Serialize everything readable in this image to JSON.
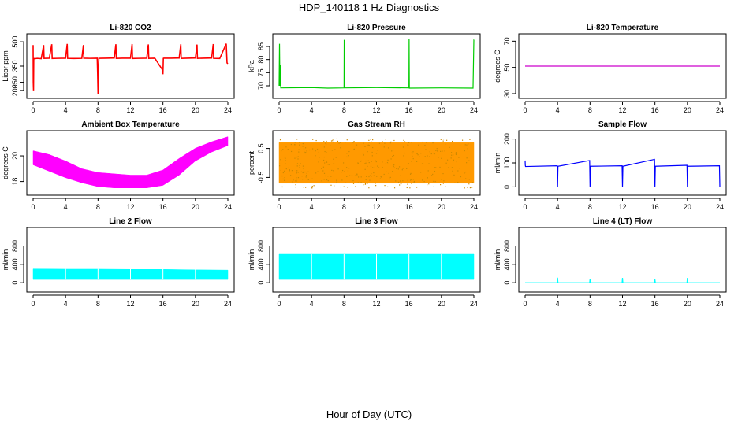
{
  "figure": {
    "title": "HDP_140118  1 Hz Diagnostics",
    "xlabel": "Hour of Day (UTC)"
  },
  "chart_data": [
    {
      "type": "line",
      "title": "Li-820 CO2",
      "xlabel": "",
      "ylabel": "Licor ppm",
      "color": "#ff0000",
      "xlim": [
        0,
        24
      ],
      "ylim": [
        180,
        520
      ],
      "xticks": [
        "0",
        "4",
        "8",
        "12",
        "16",
        "20",
        "24"
      ],
      "yticks": [
        "200",
        "250",
        "350",
        "500"
      ],
      "series": [
        {
          "x": [
            0,
            0.02,
            0.05,
            0.08,
            0.1,
            0.5,
            1,
            1.3,
            1.35,
            2,
            2.3,
            2.35,
            3,
            4,
            4.2,
            4.25,
            5,
            6,
            6.2,
            6.25,
            7,
            7.9,
            7.95,
            8,
            8.05,
            8.1,
            9,
            10,
            10.2,
            10.25,
            11,
            12,
            12.2,
            12.25,
            13,
            14,
            14.2,
            14.25,
            15,
            15.9,
            16,
            16.05,
            16.1,
            17,
            18,
            18.2,
            18.25,
            19,
            20,
            20.2,
            20.25,
            21,
            22,
            22.2,
            22.25,
            23,
            23.8,
            23.9,
            24
          ],
          "y": [
            480,
            250,
            200,
            400,
            395,
            398,
            396,
            480,
            398,
            399,
            485,
            397,
            398,
            399,
            487,
            398,
            397,
            398,
            480,
            399,
            398,
            399,
            305,
            180,
            320,
            398,
            399,
            400,
            485,
            398,
            399,
            399,
            486,
            397,
            398,
            399,
            484,
            398,
            399,
            330,
            300,
            398,
            399,
            399,
            400,
            485,
            398,
            399,
            400,
            483,
            398,
            399,
            400,
            486,
            398,
            397,
            488,
            370,
            365
          ]
        }
      ]
    },
    {
      "type": "line",
      "title": "Li-820 Pressure",
      "xlabel": "",
      "ylabel": "kPa",
      "color": "#00cc00",
      "xlim": [
        0,
        24
      ],
      "ylim": [
        67,
        88
      ],
      "xticks": [
        "0",
        "4",
        "8",
        "12",
        "16",
        "20",
        "24"
      ],
      "yticks": [
        "70",
        "75",
        "80",
        "85"
      ],
      "series": [
        {
          "x": [
            0,
            0.05,
            0.1,
            0.15,
            0.2,
            4,
            6,
            8,
            8.02,
            8.05,
            12,
            16,
            16.02,
            16.05,
            20,
            23.9,
            24,
            24.02
          ],
          "y": [
            70,
            86,
            70,
            78,
            69.2,
            69.3,
            69.1,
            69.2,
            87.5,
            69.2,
            69.3,
            69.2,
            87.8,
            69.1,
            69.2,
            69.1,
            87.5,
            87.5
          ]
        }
      ]
    },
    {
      "type": "line",
      "title": "Li-820 Temperature",
      "xlabel": "",
      "ylabel": "degrees C",
      "color": "#cc00cc",
      "xlim": [
        0,
        24
      ],
      "ylim": [
        30,
        72
      ],
      "xticks": [
        "0",
        "4",
        "8",
        "12",
        "16",
        "20",
        "24"
      ],
      "yticks": [
        "30",
        "50",
        "70"
      ],
      "series": [
        {
          "x": [
            0,
            24
          ],
          "y": [
            51,
            51
          ]
        }
      ]
    },
    {
      "type": "area",
      "title": "Ambient Box Temperature",
      "xlabel": "",
      "ylabel": "degrees C",
      "color": "#ff00ff",
      "xlim": [
        0,
        24
      ],
      "ylim": [
        17.3,
        21.6
      ],
      "xticks": [
        "0",
        "4",
        "8",
        "12",
        "16",
        "20",
        "24"
      ],
      "yticks": [
        "18",
        "20"
      ],
      "series": [
        {
          "x": [
            0,
            2,
            4,
            6,
            8,
            10,
            12,
            14,
            16,
            18,
            20,
            22,
            24
          ],
          "lower": [
            19.3,
            18.8,
            18.3,
            17.9,
            17.6,
            17.5,
            17.5,
            17.5,
            17.7,
            18.5,
            19.6,
            20.3,
            20.8
          ],
          "upper": [
            20.4,
            20.1,
            19.6,
            19.0,
            18.7,
            18.6,
            18.5,
            18.5,
            18.9,
            19.8,
            20.6,
            21.1,
            21.5
          ]
        }
      ]
    },
    {
      "type": "scatter",
      "title": "Gas Stream RH",
      "xlabel": "",
      "ylabel": "percent",
      "color": "#ff9900",
      "xlim": [
        0,
        24
      ],
      "ylim": [
        -0.95,
        0.95
      ],
      "xticks": [
        "0",
        "4",
        "8",
        "12",
        "16",
        "20",
        "24"
      ],
      "yticks": [
        "-0.5",
        "0.5"
      ],
      "series": [
        {
          "x": [
            0,
            24
          ],
          "lower": [
            -0.7,
            -0.7
          ],
          "upper": [
            0.7,
            0.7
          ]
        }
      ]
    },
    {
      "type": "line",
      "title": "Sample Flow",
      "xlabel": "",
      "ylabel": "ml/min",
      "color": "#0000ff",
      "xlim": [
        0,
        24
      ],
      "ylim": [
        -15,
        215
      ],
      "xticks": [
        "0",
        "4",
        "8",
        "12",
        "16",
        "20",
        "24"
      ],
      "yticks": [
        "0",
        "100",
        "200"
      ],
      "series": [
        {
          "x": [
            0,
            0.02,
            0.05,
            3.95,
            4,
            4.05,
            7.95,
            8,
            8.05,
            11.95,
            12,
            12.05,
            15.95,
            16,
            16.05,
            19.95,
            20,
            20.05,
            23.95,
            24
          ],
          "y": [
            110,
            90,
            85,
            88,
            0,
            86,
            110,
            0,
            86,
            88,
            0,
            86,
            115,
            0,
            86,
            90,
            0,
            86,
            88,
            0
          ]
        }
      ]
    },
    {
      "type": "area",
      "title": "Line 2 Flow",
      "xlabel": "",
      "ylabel": "ml/min",
      "color": "#00ffff",
      "xlim": [
        0,
        24
      ],
      "ylim": [
        -100,
        1100
      ],
      "xticks": [
        "0",
        "4",
        "8",
        "12",
        "16",
        "20",
        "24"
      ],
      "yticks": [
        "0",
        "400",
        "800"
      ],
      "series": [
        {
          "x": [
            0,
            4,
            8,
            12,
            16,
            20,
            24
          ],
          "lower": [
            70,
            70,
            70,
            70,
            70,
            70,
            70
          ],
          "upper": [
            300,
            295,
            295,
            290,
            290,
            280,
            275
          ]
        }
      ]
    },
    {
      "type": "area",
      "title": "Line 3 Flow",
      "xlabel": "",
      "ylabel": "ml/min",
      "color": "#00ffff",
      "xlim": [
        0,
        24
      ],
      "ylim": [
        -100,
        1100
      ],
      "xticks": [
        "0",
        "4",
        "8",
        "12",
        "16",
        "20",
        "24"
      ],
      "yticks": [
        "0",
        "400",
        "800"
      ],
      "series": [
        {
          "x": [
            0,
            4,
            8,
            12,
            16,
            20,
            24
          ],
          "lower": [
            70,
            70,
            70,
            70,
            70,
            70,
            70
          ],
          "upper": [
            620,
            620,
            620,
            620,
            620,
            620,
            620
          ]
        }
      ]
    },
    {
      "type": "line",
      "title": "Line 4 (LT) Flow",
      "xlabel": "",
      "ylabel": "ml/min",
      "color": "#00ffff",
      "xlim": [
        0,
        24
      ],
      "ylim": [
        -100,
        1100
      ],
      "xticks": [
        "0",
        "4",
        "8",
        "12",
        "16",
        "20",
        "24"
      ],
      "yticks": [
        "0",
        "400",
        "800"
      ],
      "series": [
        {
          "x": [
            0,
            3.95,
            4,
            4.05,
            7.95,
            8,
            8.05,
            11.95,
            12,
            12.05,
            15.95,
            16,
            16.05,
            19.95,
            20,
            20.05,
            24
          ],
          "y": [
            0,
            0,
            110,
            0,
            0,
            85,
            0,
            0,
            105,
            0,
            0,
            70,
            0,
            0,
            105,
            0,
            0
          ]
        }
      ]
    }
  ]
}
